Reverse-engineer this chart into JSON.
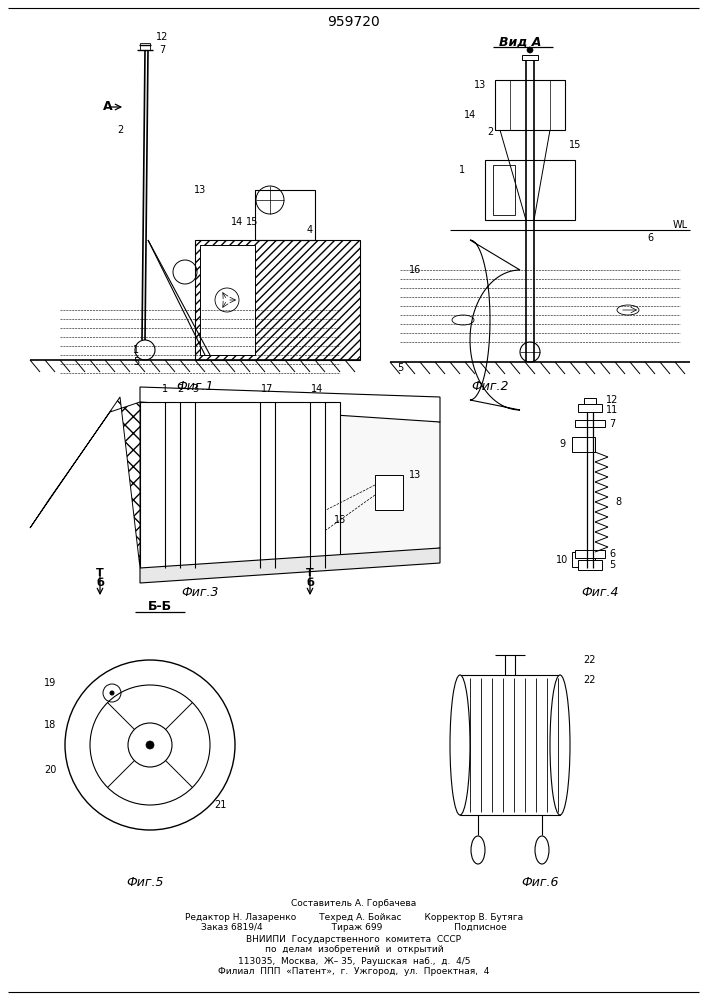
{
  "patent_number": "959720",
  "bg": "#ffffff",
  "lc": "#000000",
  "fig_labels": [
    "Фиг.1",
    "Фиг.2",
    "Фиг.3",
    "Фиг.4",
    "Фиг.5",
    "Фиг.6"
  ],
  "view_a": "Вид А",
  "bb": "Б-Б",
  "footer": [
    "Составитель А. Горбачева",
    "Редактор Н. Лазаренко        Техред А. Бойкас        Корректор В. Бутяга",
    "Заказ 6819/4                        Тираж 699                         Подписное",
    "ВНИИПИ  Государственного  комитета  СССР",
    "по  делам  изобретений  и  открытий",
    "113035,  Москва,  Ж– 35,  Раушская  наб.,  д.  4/5",
    "Филиал  ППП  «Патент»,  г.  Ужгород,  ул.  Проектная,  4"
  ]
}
